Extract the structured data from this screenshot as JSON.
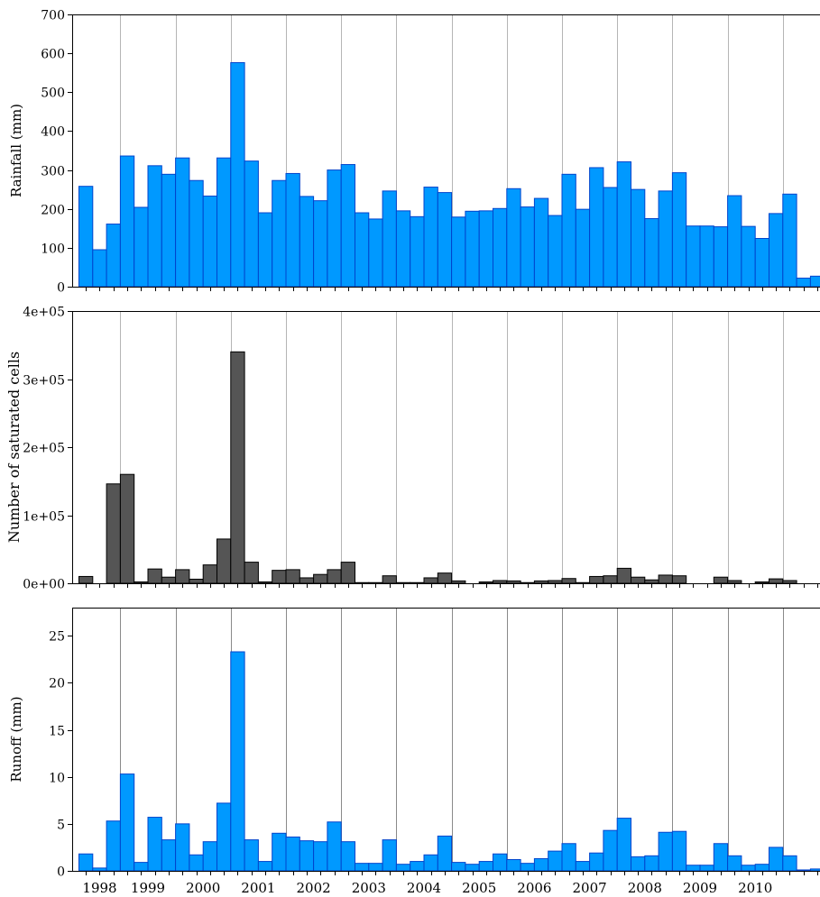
{
  "chart_data": [
    {
      "type": "bar",
      "ylabel": "Rainfall (mm)",
      "ylim": [
        0,
        700
      ],
      "yticks": [
        "0",
        "100",
        "200",
        "300",
        "400",
        "500",
        "600",
        "700"
      ],
      "yticks_values": [
        0,
        100,
        200,
        300,
        400,
        500,
        600,
        700
      ],
      "bar_color": "#0099ff",
      "edge_color": "#0044cc",
      "grid": "vertical lines at each year boundary",
      "values": [
        258,
        95,
        161,
        336,
        204,
        311,
        289,
        331,
        273,
        233,
        331,
        576,
        323,
        190,
        273,
        291,
        232,
        221,
        300,
        314,
        190,
        174,
        246,
        195,
        180,
        256,
        242,
        179,
        194,
        195,
        201,
        252,
        205,
        227,
        183,
        289,
        199,
        306,
        255,
        321,
        250,
        175,
        246,
        293,
        156,
        156,
        154,
        234,
        155,
        124,
        188,
        238,
        22,
        27
      ]
    },
    {
      "type": "bar",
      "ylabel": "Number of saturated cells",
      "ylim": [
        0,
        400000
      ],
      "yticks": [
        "0e+00",
        "1e+05",
        "2e+05",
        "3e+05",
        "4e+05"
      ],
      "yticks_values": [
        0,
        100000,
        200000,
        300000,
        400000
      ],
      "bar_color": "#555555",
      "edge_color": "#000000",
      "grid": "vertical lines at each year boundary",
      "values": [
        10000,
        0,
        146000,
        160000,
        2000,
        21000,
        9000,
        20000,
        6000,
        27000,
        65000,
        340000,
        31000,
        2000,
        19000,
        20000,
        8000,
        13000,
        20000,
        31000,
        1000,
        1000,
        11000,
        1000,
        1000,
        8000,
        15000,
        3500,
        0,
        2000,
        4000,
        3500,
        1000,
        3500,
        4000,
        7000,
        1000,
        10000,
        11000,
        22000,
        9000,
        5000,
        12000,
        11000,
        0,
        0,
        9000,
        4000,
        0,
        2000,
        6500,
        4000,
        0,
        0
      ]
    },
    {
      "type": "bar",
      "ylabel": "Runoff (mm)",
      "ylim": [
        0,
        28
      ],
      "yticks": [
        "0",
        "5",
        "10",
        "15",
        "20",
        "25"
      ],
      "yticks_values": [
        0,
        5,
        10,
        15,
        20,
        25
      ],
      "bar_color": "#0099ff",
      "edge_color": "#0044cc",
      "grid": "vertical lines at each year boundary",
      "values": [
        1.8,
        0.3,
        5.3,
        10.3,
        0.9,
        5.7,
        3.3,
        5.0,
        1.7,
        3.1,
        7.2,
        23.3,
        3.3,
        1.0,
        4.0,
        3.6,
        3.2,
        3.1,
        5.2,
        3.1,
        0.8,
        0.8,
        3.3,
        0.7,
        1.0,
        1.7,
        3.7,
        0.9,
        0.7,
        1.0,
        1.8,
        1.2,
        0.8,
        1.3,
        2.1,
        2.9,
        1.0,
        1.9,
        4.3,
        5.6,
        1.5,
        1.6,
        4.1,
        4.2,
        0.6,
        0.6,
        2.9,
        1.6,
        0.6,
        0.7,
        2.5,
        1.6,
        0.1,
        0.2
      ]
    }
  ],
  "x_axis": {
    "years": [
      "1998",
      "1999",
      "2000",
      "2001",
      "2002",
      "2003",
      "2004",
      "2005",
      "2006",
      "2007",
      "2008",
      "2009",
      "2010"
    ]
  }
}
